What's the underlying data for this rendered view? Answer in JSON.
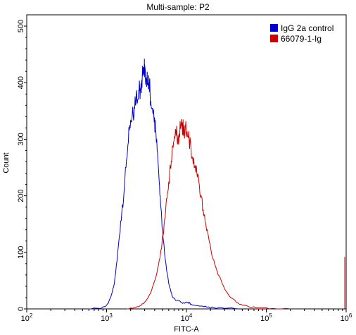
{
  "chart_data": {
    "type": "line",
    "title": "Multi-sample: P2",
    "xlabel": "FITC-A",
    "ylabel": "Count",
    "x_scale": "log",
    "xlim": [
      100,
      1000000
    ],
    "ylim": [
      0,
      520
    ],
    "x_ticks": [
      {
        "value": 100,
        "base": "10",
        "exp": "2"
      },
      {
        "value": 1000,
        "base": "10",
        "exp": "3"
      },
      {
        "value": 10000,
        "base": "10",
        "exp": "4"
      },
      {
        "value": 100000,
        "base": "10",
        "exp": "5"
      },
      {
        "value": 1000000,
        "base": "10",
        "exp": "6"
      }
    ],
    "y_ticks": [
      0,
      100,
      200,
      300,
      400,
      500
    ],
    "legend_position": "top-right",
    "series": [
      {
        "name": "IgG 2a control",
        "color": "#0000cc",
        "points": [
          [
            600,
            0
          ],
          [
            800,
            1
          ],
          [
            950,
            4
          ],
          [
            1050,
            10
          ],
          [
            1150,
            25
          ],
          [
            1250,
            45
          ],
          [
            1350,
            85
          ],
          [
            1450,
            130
          ],
          [
            1550,
            170
          ],
          [
            1650,
            205
          ],
          [
            1750,
            250
          ],
          [
            1850,
            290
          ],
          [
            1950,
            325
          ],
          [
            2050,
            330
          ],
          [
            2150,
            345
          ],
          [
            2250,
            355
          ],
          [
            2350,
            380
          ],
          [
            2450,
            370
          ],
          [
            2550,
            385
          ],
          [
            2650,
            390
          ],
          [
            2750,
            405
          ],
          [
            2850,
            412
          ],
          [
            2950,
            420
          ],
          [
            3000,
            432
          ],
          [
            3100,
            410
          ],
          [
            3200,
            405
          ],
          [
            3300,
            395
          ],
          [
            3400,
            402
          ],
          [
            3500,
            385
          ],
          [
            3650,
            355
          ],
          [
            3800,
            345
          ],
          [
            3950,
            330
          ],
          [
            4100,
            315
          ],
          [
            4300,
            280
          ],
          [
            4500,
            240
          ],
          [
            4700,
            200
          ],
          [
            4900,
            160
          ],
          [
            5100,
            125
          ],
          [
            5400,
            90
          ],
          [
            5700,
            65
          ],
          [
            6000,
            45
          ],
          [
            6400,
            30
          ],
          [
            6800,
            20
          ],
          [
            7500,
            15
          ],
          [
            8500,
            12
          ],
          [
            9500,
            10
          ],
          [
            10500,
            12
          ],
          [
            11500,
            8
          ],
          [
            13000,
            6
          ],
          [
            15000,
            5
          ],
          [
            18000,
            3
          ],
          [
            22000,
            2
          ],
          [
            30000,
            1
          ],
          [
            45000,
            0
          ]
        ]
      },
      {
        "name": "66079-1-Ig",
        "color": "#cc0000",
        "points": [
          [
            1800,
            0
          ],
          [
            2200,
            2
          ],
          [
            2600,
            5
          ],
          [
            3000,
            12
          ],
          [
            3300,
            20
          ],
          [
            3600,
            30
          ],
          [
            3900,
            45
          ],
          [
            4200,
            60
          ],
          [
            4500,
            80
          ],
          [
            4800,
            105
          ],
          [
            5100,
            130
          ],
          [
            5400,
            160
          ],
          [
            5700,
            195
          ],
          [
            6000,
            225
          ],
          [
            6300,
            250
          ],
          [
            6600,
            275
          ],
          [
            6900,
            295
          ],
          [
            7200,
            305
          ],
          [
            7500,
            315
          ],
          [
            7800,
            300
          ],
          [
            8100,
            310
          ],
          [
            8400,
            320
          ],
          [
            8700,
            325
          ],
          [
            9000,
            318
          ],
          [
            9300,
            322
          ],
          [
            9600,
            312
          ],
          [
            9900,
            318
          ],
          [
            10300,
            305
          ],
          [
            10800,
            300
          ],
          [
            11400,
            285
          ],
          [
            12000,
            265
          ],
          [
            12700,
            250
          ],
          [
            13500,
            240
          ],
          [
            14300,
            225
          ],
          [
            15200,
            200
          ],
          [
            16200,
            175
          ],
          [
            17500,
            150
          ],
          [
            19000,
            125
          ],
          [
            20500,
            100
          ],
          [
            22500,
            80
          ],
          [
            25000,
            60
          ],
          [
            28000,
            45
          ],
          [
            32000,
            30
          ],
          [
            36000,
            20
          ],
          [
            42000,
            12
          ],
          [
            50000,
            7
          ],
          [
            60000,
            4
          ],
          [
            80000,
            2
          ],
          [
            120000,
            1
          ],
          [
            200000,
            0
          ]
        ]
      }
    ]
  }
}
